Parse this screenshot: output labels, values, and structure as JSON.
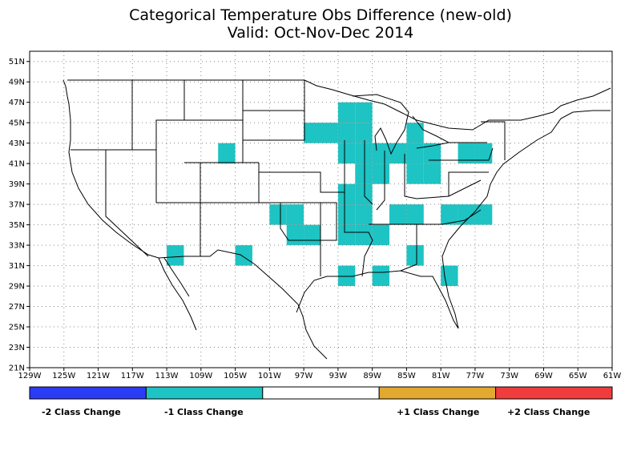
{
  "title": "Categorical Temperature Obs Difference (new-old)",
  "subtitle": "Valid: Oct-Nov-Dec 2014",
  "map": {
    "lon_range": [
      -129,
      -61
    ],
    "lat_range": [
      21,
      52
    ],
    "lat_ticks": [
      "51N",
      "49N",
      "47N",
      "45N",
      "43N",
      "41N",
      "39N",
      "37N",
      "35N",
      "33N",
      "31N",
      "29N",
      "27N",
      "25N",
      "23N",
      "21N"
    ],
    "lat_values": [
      51,
      49,
      47,
      45,
      43,
      41,
      39,
      37,
      35,
      33,
      31,
      29,
      27,
      25,
      23,
      21
    ],
    "lon_ticks": [
      "129W",
      "125W",
      "121W",
      "117W",
      "113W",
      "109W",
      "105W",
      "101W",
      "97W",
      "93W",
      "89W",
      "85W",
      "81W",
      "77W",
      "73W",
      "69W",
      "65W",
      "61W"
    ],
    "lon_values": [
      -129,
      -125,
      -121,
      -117,
      -113,
      -109,
      -105,
      -101,
      -97,
      -93,
      -89,
      -85,
      -81,
      -77,
      -73,
      -69,
      -65,
      -61
    ],
    "grid": "dotted",
    "cell_size_deg": 2,
    "cells_minus1_class": [
      [
        -112,
        32
      ],
      [
        -106,
        42
      ],
      [
        -104,
        32
      ],
      [
        -100,
        36
      ],
      [
        -98,
        36
      ],
      [
        -98,
        34
      ],
      [
        -96,
        34
      ],
      [
        -96,
        44
      ],
      [
        -94,
        44
      ],
      [
        -92,
        46
      ],
      [
        -92,
        44
      ],
      [
        -92,
        42
      ],
      [
        -90,
        46
      ],
      [
        -90,
        44
      ],
      [
        -90,
        42
      ],
      [
        -90,
        40
      ],
      [
        -88,
        42
      ],
      [
        -88,
        40
      ],
      [
        -92,
        38
      ],
      [
        -92,
        36
      ],
      [
        -92,
        34
      ],
      [
        -90,
        38
      ],
      [
        -90,
        36
      ],
      [
        -90,
        34
      ],
      [
        -88,
        34
      ],
      [
        -86,
        42
      ],
      [
        -84,
        44
      ],
      [
        -84,
        42
      ],
      [
        -82,
        40
      ],
      [
        -82,
        42
      ],
      [
        -84,
        40
      ],
      [
        -86,
        36
      ],
      [
        -84,
        36
      ],
      [
        -80,
        36
      ],
      [
        -78,
        36
      ],
      [
        -76,
        36
      ],
      [
        -78,
        42
      ],
      [
        -76,
        42
      ],
      [
        -92,
        30
      ],
      [
        -88,
        30
      ],
      [
        -84,
        32
      ],
      [
        -80,
        30
      ]
    ]
  },
  "legend": {
    "colors": [
      "#2b3cf5",
      "#1ec3c3",
      "#ffffff",
      "#e2a830",
      "#f03c3c"
    ],
    "labels": [
      "-2 Class Change",
      "-1 Class Change",
      "+1 Class Change",
      "+2 Class Change"
    ]
  },
  "colors": {
    "minus1": "#1ec3c3",
    "frame": "#000000"
  }
}
